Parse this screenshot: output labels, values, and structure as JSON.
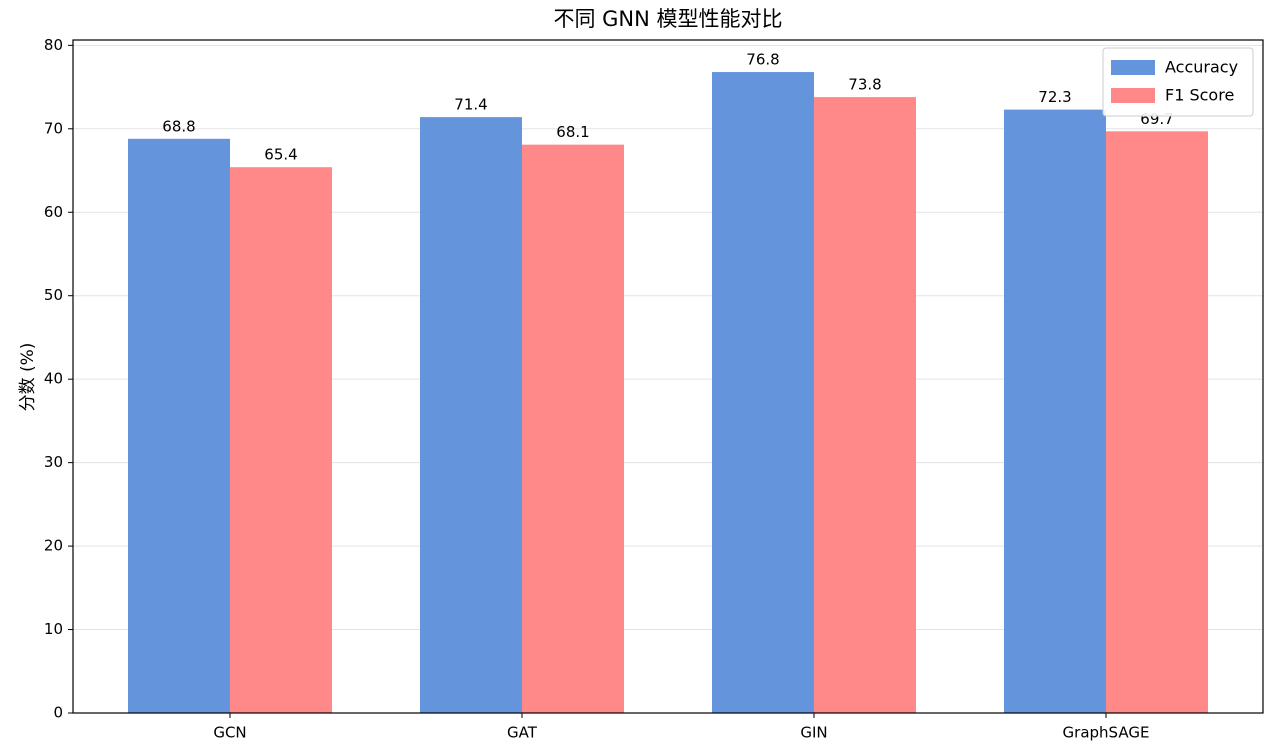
{
  "chart_data": {
    "type": "bar",
    "title": "不同 GNN 模型性能对比",
    "y_label": "分数 (%)",
    "categories": [
      "GCN",
      "GAT",
      "GIN",
      "GraphSAGE"
    ],
    "series": [
      {
        "name": "Accuracy",
        "color": "#6495dc",
        "values": [
          68.8,
          71.4,
          76.8,
          72.3
        ]
      },
      {
        "name": "F1 Score",
        "color": "#ff8888",
        "values": [
          65.4,
          68.1,
          73.8,
          69.7
        ]
      }
    ],
    "ylim": [
      0,
      80.64
    ],
    "yticks": [
      0,
      10,
      20,
      30,
      40,
      50,
      60,
      70,
      80
    ],
    "grid": true,
    "legend": "upper right"
  }
}
